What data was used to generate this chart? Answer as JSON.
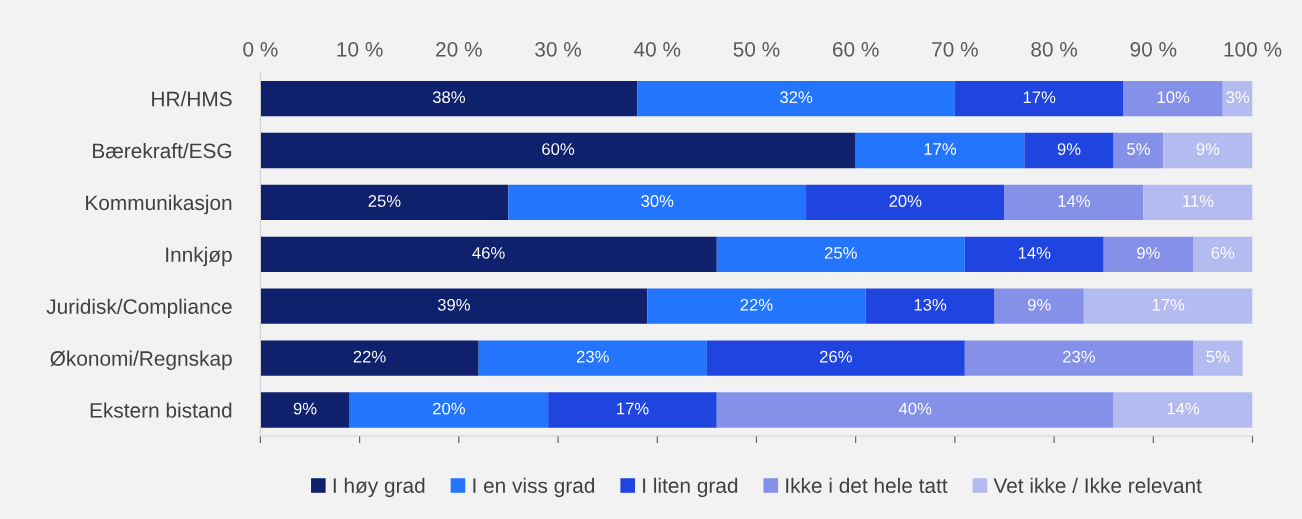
{
  "chart_data": {
    "type": "bar",
    "orientation": "horizontal",
    "stacked": true,
    "grid": false,
    "legend": "bottom",
    "categories": [
      "HR/HMS",
      "Bærekraft/ESG",
      "Kommunikasjon",
      "Innkjøp",
      "Juridisk/Compliance",
      "Økonomi/Regnskap",
      "Ekstern bistand"
    ],
    "xlim": [
      0,
      100
    ],
    "xticks": [
      {
        "value": 0,
        "label": "0 %"
      },
      {
        "value": 10,
        "label": "10 %"
      },
      {
        "value": 20,
        "label": "20 %"
      },
      {
        "value": 30,
        "label": "30 %"
      },
      {
        "value": 40,
        "label": "40 %"
      },
      {
        "value": 50,
        "label": "50 %"
      },
      {
        "value": 60,
        "label": "60 %"
      },
      {
        "value": 70,
        "label": "70 %"
      },
      {
        "value": 80,
        "label": "80 %"
      },
      {
        "value": 90,
        "label": "90 %"
      },
      {
        "value": 100,
        "label": "100 %"
      }
    ],
    "series": [
      {
        "name": "I høy grad",
        "color": "#0f206c",
        "values": [
          38,
          60,
          25,
          46,
          39,
          22,
          9
        ],
        "value_labels": [
          "38%",
          "60%",
          "25%",
          "46%",
          "39%",
          "22%",
          "9%"
        ]
      },
      {
        "name": "I en viss grad",
        "color": "#2375fe",
        "values": [
          32,
          17,
          30,
          25,
          22,
          23,
          20
        ],
        "value_labels": [
          "32%",
          "17%",
          "30%",
          "25%",
          "22%",
          "23%",
          "20%"
        ]
      },
      {
        "name": "I liten grad",
        "color": "#1f44e0",
        "values": [
          17,
          9,
          20,
          14,
          13,
          26,
          17
        ],
        "value_labels": [
          "17%",
          "9%",
          "20%",
          "14%",
          "13%",
          "26%",
          "17%"
        ]
      },
      {
        "name": "Ikke i det hele tatt",
        "color": "#8591e8",
        "values": [
          10,
          5,
          14,
          9,
          9,
          23,
          40
        ],
        "value_labels": [
          "10%",
          "5%",
          "14%",
          "9%",
          "9%",
          "23%",
          "40%"
        ]
      },
      {
        "name": "Vet ikke / Ikke relevant",
        "color": "#b4bbf0",
        "values": [
          3,
          9,
          11,
          6,
          17,
          5,
          14
        ],
        "value_labels": [
          "3%",
          "9%",
          "11%",
          "6%",
          "17%",
          "5%",
          "14%"
        ]
      }
    ]
  }
}
